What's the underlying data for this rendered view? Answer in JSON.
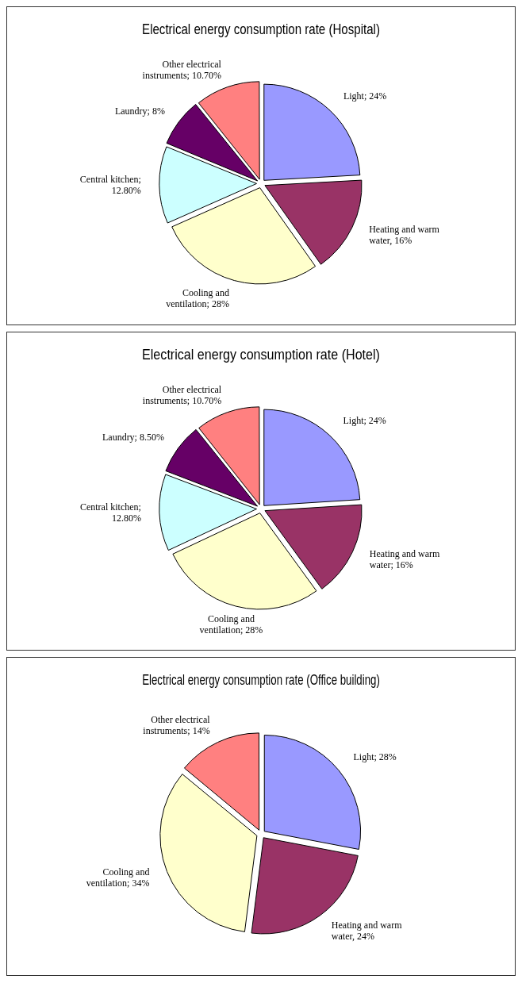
{
  "chart_data": [
    {
      "type": "pie",
      "title": "Electrical energy consumption rate (Hospital)",
      "categories": [
        "Light; 24%",
        "Heating and warm water, 16%",
        "Cooling and ventilation; 28%",
        "Central kitchen; 12.80%",
        "Laundry; 8%",
        "Other electrical instruments; 10.70%"
      ],
      "values": [
        24,
        16,
        28,
        12.8,
        8,
        10.7
      ],
      "colors": [
        "#9999ff",
        "#993366",
        "#ffffcc",
        "#ccffff",
        "#660066",
        "#ff8080"
      ],
      "legend": false
    },
    {
      "type": "pie",
      "title": "Electrical energy consumption rate (Hotel)",
      "categories": [
        "Light; 24%",
        "Heating and warm water; 16%",
        "Cooling and ventilation; 28%",
        "Central kitchen; 12.80%",
        "Laundry; 8.50%",
        "Other electrical instruments; 10.70%"
      ],
      "values": [
        24,
        16,
        28,
        12.8,
        8.5,
        10.7
      ],
      "colors": [
        "#9999ff",
        "#993366",
        "#ffffcc",
        "#ccffff",
        "#660066",
        "#ff8080"
      ],
      "legend": false
    },
    {
      "type": "pie",
      "title": "Electrical energy consumption rate (Office building)",
      "categories": [
        "Light; 28%",
        "Heating and warm water, 24%",
        "Cooling and ventilation; 34%",
        "Other electrical instruments; 14%"
      ],
      "values": [
        28,
        24,
        34,
        14
      ],
      "colors": [
        "#9999ff",
        "#993366",
        "#ffffcc",
        "#ff8080"
      ],
      "legend": false
    }
  ]
}
